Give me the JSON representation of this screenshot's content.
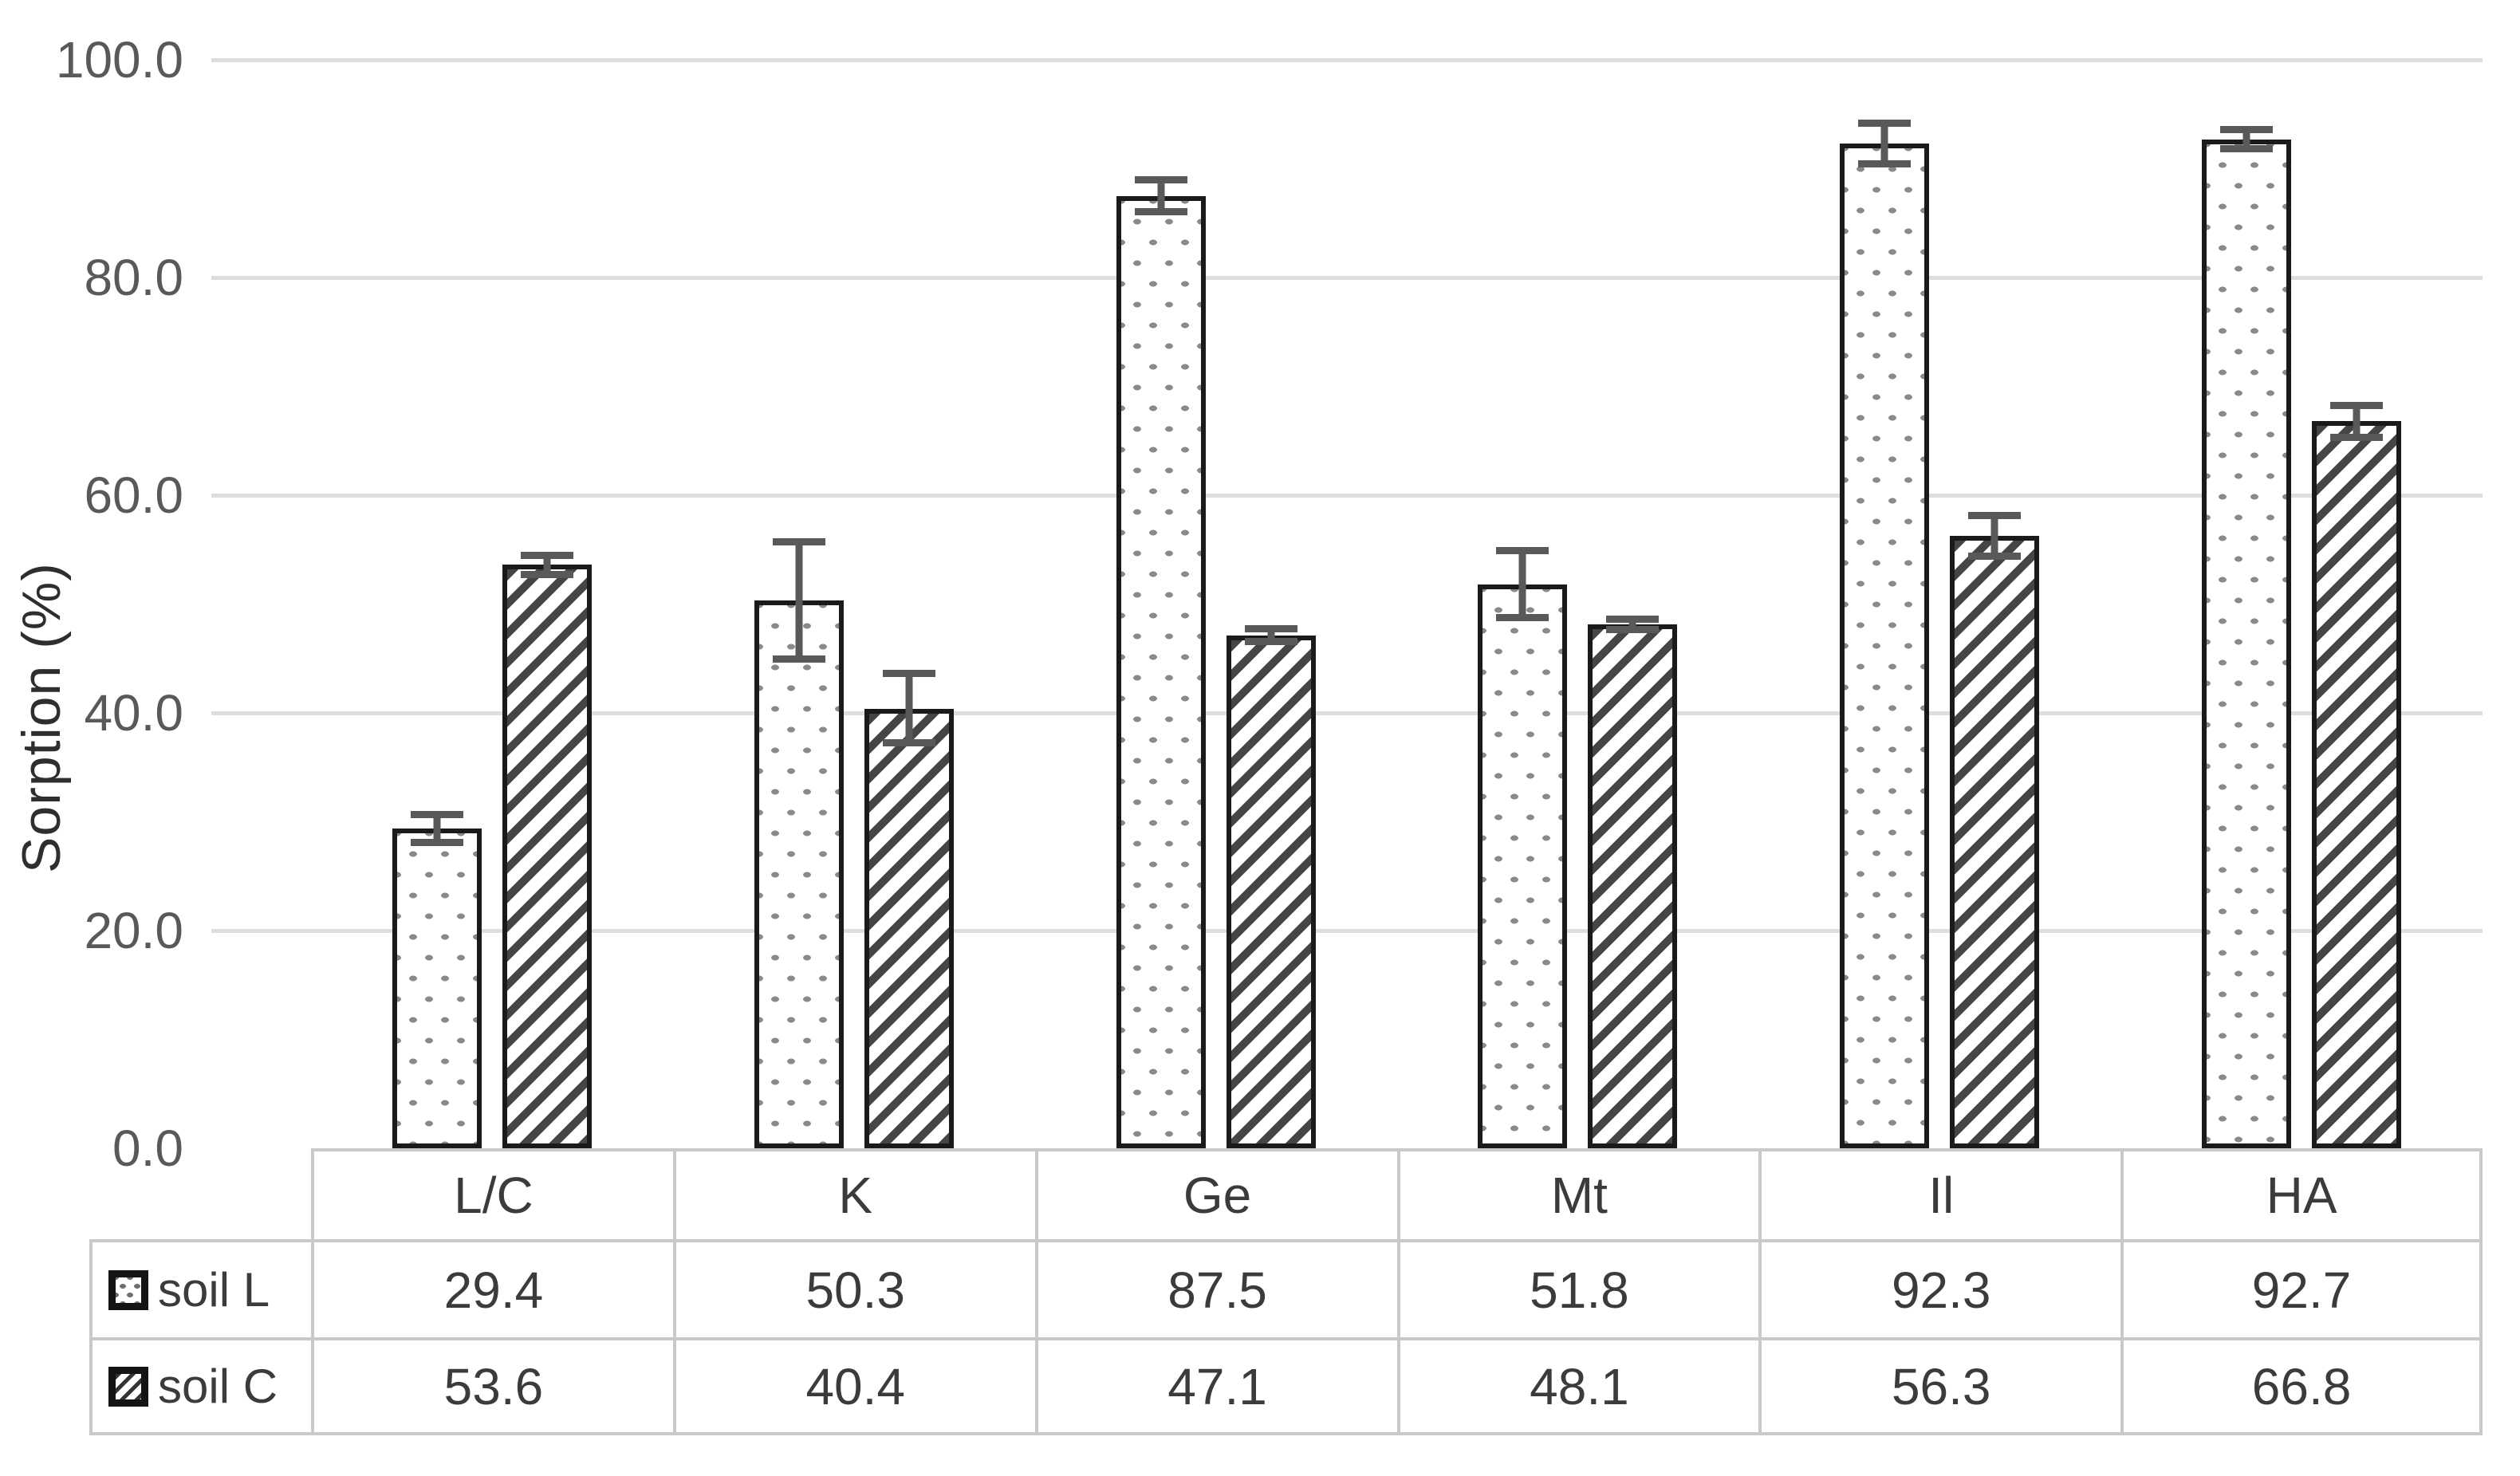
{
  "style": {
    "bg": "#ffffff",
    "text": "#3b3b3b",
    "tick": "#595959",
    "grid": "#dedede",
    "tableBorder": "#c9c9c9",
    "err": "#595959",
    "barOutline": "#1a1a1a",
    "dot": "#8a8a8a",
    "hatch": "#454545"
  },
  "chart_data": {
    "type": "bar",
    "title": "",
    "xlabel": "",
    "ylabel": "Sorption (%)",
    "ylim": [
      0,
      100
    ],
    "yticks": [
      100,
      80,
      60,
      40,
      20,
      0
    ],
    "ytick_labels": [
      "100.0",
      "80.0",
      "60.0",
      "40.0",
      "20.0",
      "0.0"
    ],
    "grid": "horizontal-only",
    "legend_position": "data-table-left",
    "categories": [
      "L/C",
      "K",
      "Ge",
      "Mt",
      "Il",
      "HA"
    ],
    "series": [
      {
        "name": "soil L",
        "pattern": "dots",
        "values": [
          29.4,
          50.3,
          87.5,
          51.8,
          92.3,
          92.7
        ],
        "errors": [
          1.6,
          5.7,
          1.8,
          3.4,
          2.2,
          1.2
        ]
      },
      {
        "name": "soil C",
        "pattern": "diagonal-hatch",
        "values": [
          53.6,
          40.4,
          47.1,
          48.1,
          56.3,
          66.8
        ],
        "errors": [
          1.2,
          3.5,
          0.9,
          0.8,
          2.2,
          1.8
        ]
      }
    ],
    "data_table_shown": true
  }
}
